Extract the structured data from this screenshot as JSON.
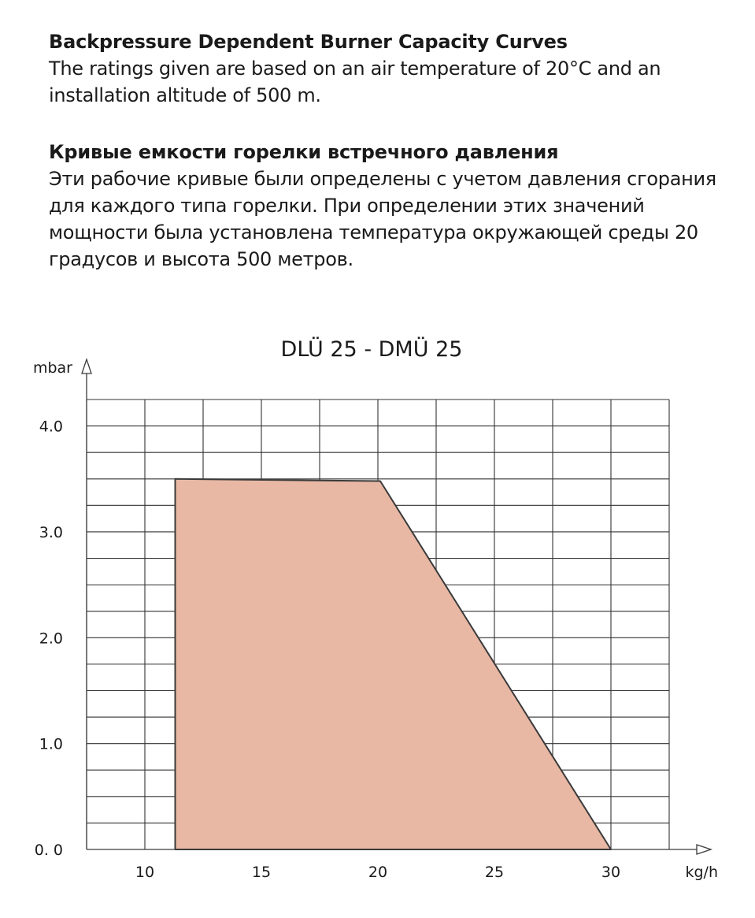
{
  "intro": {
    "en_heading": "Backpressure Dependent Burner Capacity Curves",
    "en_text": "The ratings given are based on an air temperature of 20°C and an installation altitude of 500 m.",
    "ru_heading": "Кривые емкости горелки встречного давления",
    "ru_text": "Эти рабочие кривые были определены с учетом давления сгорания для каждого типа горелки. При определении этих значений мощности была установлена температура окружающей среды 20 градусов и высота 500 метров."
  },
  "chart_data": {
    "type": "area",
    "title": "DLÜ 25 - DMÜ 25",
    "xlabel": "kg/h",
    "ylabel": "mbar",
    "xlim": [
      7.5,
      32.5
    ],
    "ylim": [
      0,
      4.25
    ],
    "x_ticks": [
      10,
      15,
      20,
      25,
      30
    ],
    "x_tick_labels": [
      "10",
      "15",
      "20",
      "25",
      "30"
    ],
    "y_ticks": [
      0,
      1,
      2,
      3,
      4
    ],
    "y_tick_labels": [
      "0. 0",
      "1.0",
      "2.0",
      "3.0",
      "4.0"
    ],
    "grid": true,
    "fill_color": "#e8b8a4",
    "line_color": "#3a3a3a",
    "polygon": [
      {
        "x": 11.3,
        "y": 0
      },
      {
        "x": 11.3,
        "y": 3.5
      },
      {
        "x": 20.1,
        "y": 3.48
      },
      {
        "x": 30.0,
        "y": 0
      }
    ]
  }
}
